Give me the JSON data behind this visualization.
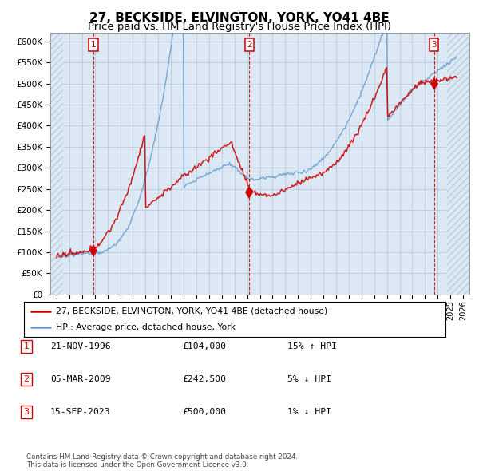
{
  "title": "27, BECKSIDE, ELVINGTON, YORK, YO41 4BE",
  "subtitle": "Price paid vs. HM Land Registry's House Price Index (HPI)",
  "xlim": [
    1993.5,
    2026.5
  ],
  "ylim": [
    0,
    620000
  ],
  "yticks": [
    0,
    50000,
    100000,
    150000,
    200000,
    250000,
    300000,
    350000,
    400000,
    450000,
    500000,
    550000,
    600000
  ],
  "ytick_labels": [
    "£0",
    "£50K",
    "£100K",
    "£150K",
    "£200K",
    "£250K",
    "£300K",
    "£350K",
    "£400K",
    "£450K",
    "£500K",
    "£550K",
    "£600K"
  ],
  "sale_dates": [
    1996.896,
    2009.178,
    2023.708
  ],
  "sale_prices": [
    104000,
    242500,
    500000
  ],
  "sale_labels": [
    "1",
    "2",
    "3"
  ],
  "legend_line1": "27, BECKSIDE, ELVINGTON, YORK, YO41 4BE (detached house)",
  "legend_line2": "HPI: Average price, detached house, York",
  "table_rows": [
    {
      "num": "1",
      "date": "21-NOV-1996",
      "price": "£104,000",
      "hpi": "15% ↑ HPI"
    },
    {
      "num": "2",
      "date": "05-MAR-2009",
      "price": "£242,500",
      "hpi": "5% ↓ HPI"
    },
    {
      "num": "3",
      "date": "15-SEP-2023",
      "price": "£500,000",
      "hpi": "1% ↓ HPI"
    }
  ],
  "footer": "Contains HM Land Registry data © Crown copyright and database right 2024.\nThis data is licensed under the Open Government Licence v3.0.",
  "bg_color": "#dce9f5",
  "hatch_color": "#b8cfe0",
  "grid_color": "#b0c4d8",
  "red_line_color": "#cc0000",
  "blue_line_color": "#6699cc",
  "dashed_color": "#cc0000",
  "title_fontsize": 11,
  "subtitle_fontsize": 9.5,
  "hatch_start": 2024.75,
  "hatch_end_left": 1994.5
}
